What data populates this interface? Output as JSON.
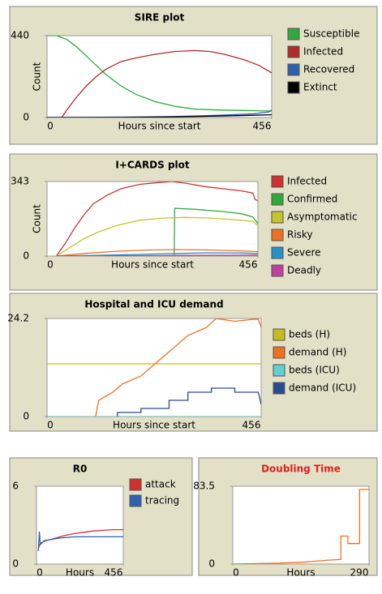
{
  "chart_data": [
    {
      "type": "line",
      "title": "SIRE plot",
      "xlabel": "Hours since start",
      "ylabel": "Count",
      "xlim": [
        0,
        456
      ],
      "ylim": [
        0,
        440
      ],
      "xticks": [
        0,
        456
      ],
      "yticks": [
        0,
        440
      ],
      "series": [
        {
          "name": "Susceptible",
          "color": "#2eaa3a",
          "x": [
            0,
            20,
            40,
            60,
            80,
            100,
            120,
            150,
            180,
            220,
            260,
            300,
            350,
            400,
            456
          ],
          "values": [
            440,
            440,
            420,
            380,
            330,
            280,
            230,
            170,
            125,
            85,
            60,
            45,
            40,
            38,
            35
          ]
        },
        {
          "name": "Infected",
          "color": "#b02a2a",
          "x": [
            30,
            40,
            60,
            80,
            100,
            120,
            150,
            180,
            220,
            260,
            300,
            330,
            360,
            400,
            430,
            456
          ],
          "values": [
            0,
            40,
            110,
            170,
            220,
            260,
            300,
            320,
            340,
            355,
            360,
            355,
            340,
            310,
            280,
            240
          ]
        },
        {
          "name": "Recovered",
          "color": "#3060b0",
          "x": [
            0,
            150,
            250,
            350,
            420,
            450,
            456
          ],
          "values": [
            0,
            2,
            5,
            12,
            20,
            30,
            40
          ]
        },
        {
          "name": "Extinct",
          "color": "#000000",
          "x": [
            0,
            150,
            250,
            350,
            420,
            456
          ],
          "values": [
            0,
            0,
            3,
            8,
            12,
            15
          ]
        }
      ]
    },
    {
      "type": "line",
      "title": "I+CARDS plot",
      "xlabel": "Hours since start",
      "ylabel": "Count",
      "xlim": [
        0,
        456
      ],
      "ylim": [
        0,
        343
      ],
      "xticks": [
        0,
        456
      ],
      "yticks": [
        0,
        343
      ],
      "series": [
        {
          "name": "Infected",
          "color": "#d03030",
          "x": [
            20,
            40,
            60,
            80,
            100,
            130,
            160,
            200,
            240,
            270,
            300,
            340,
            380,
            420,
            445,
            450,
            456
          ],
          "values": [
            0,
            60,
            130,
            190,
            240,
            280,
            310,
            330,
            338,
            343,
            335,
            320,
            310,
            300,
            290,
            260,
            255
          ]
        },
        {
          "name": "Confirmed",
          "color": "#2eaa3a",
          "x": [
            275,
            276,
            320,
            380,
            420,
            445,
            456
          ],
          "values": [
            0,
            220,
            215,
            205,
            195,
            180,
            150
          ]
        },
        {
          "name": "Asymptomatic",
          "color": "#c4c42a",
          "x": [
            20,
            50,
            80,
            110,
            150,
            200,
            250,
            300,
            350,
            400,
            445,
            456
          ],
          "values": [
            0,
            40,
            80,
            110,
            140,
            165,
            175,
            178,
            175,
            168,
            160,
            140
          ]
        },
        {
          "name": "Risky",
          "color": "#f07020",
          "x": [
            20,
            80,
            150,
            220,
            280,
            350,
            420,
            456
          ],
          "values": [
            0,
            12,
            22,
            28,
            30,
            28,
            24,
            20
          ]
        },
        {
          "name": "Severe",
          "color": "#2890c8",
          "x": [
            20,
            100,
            200,
            280,
            350,
            420,
            456
          ],
          "values": [
            0,
            3,
            8,
            12,
            15,
            14,
            12
          ]
        },
        {
          "name": "Deadly",
          "color": "#c040a0",
          "x": [
            20,
            150,
            300,
            400,
            456
          ],
          "values": [
            0,
            1,
            3,
            4,
            5
          ]
        }
      ]
    },
    {
      "type": "line",
      "title": "Hospital and ICU demand",
      "xlabel": "Hours since start",
      "xlim": [
        0,
        456
      ],
      "ylim": [
        0,
        24.2
      ],
      "xticks": [
        0,
        456
      ],
      "yticks": [
        0,
        24.2
      ],
      "series": [
        {
          "name": "beds (H)",
          "color": "#c4bc20",
          "x": [
            0,
            456
          ],
          "values": [
            13,
            13
          ]
        },
        {
          "name": "demand (H)",
          "color": "#f07020",
          "x": [
            100,
            110,
            110,
            140,
            140,
            160,
            160,
            200,
            200,
            240,
            240,
            270,
            270,
            300,
            300,
            340,
            340,
            360,
            360,
            400,
            400,
            440,
            450,
            456
          ],
          "values": [
            -2,
            4,
            4,
            6,
            6,
            8,
            8,
            10,
            10,
            14,
            14,
            17,
            17,
            20,
            20,
            22,
            22,
            24.2,
            24.2,
            23.5,
            23.5,
            24,
            24,
            22
          ]
        },
        {
          "name": "beds (ICU)",
          "color": "#60d0d0",
          "x": [
            0,
            456
          ],
          "values": [
            0,
            0
          ]
        },
        {
          "name": "demand (ICU)",
          "color": "#2a4a90",
          "x": [
            100,
            150,
            150,
            200,
            200,
            260,
            260,
            300,
            300,
            350,
            350,
            400,
            400,
            450,
            456
          ],
          "values": [
            -1,
            -1,
            1,
            1,
            2,
            2,
            4,
            4,
            6,
            6,
            7,
            7,
            6,
            6,
            3
          ]
        }
      ]
    },
    {
      "type": "line",
      "title": "R0",
      "xlabel": "Hours",
      "xlim": [
        0,
        456
      ],
      "ylim": [
        0,
        6
      ],
      "xticks": [
        0,
        456
      ],
      "yticks": [
        0,
        6
      ],
      "series": [
        {
          "name": "attack",
          "color": "#d03030",
          "x": [
            10,
            20,
            50,
            100,
            150,
            200,
            250,
            300,
            350,
            400,
            456
          ],
          "values": [
            1.2,
            1.6,
            1.8,
            2.0,
            2.2,
            2.35,
            2.45,
            2.55,
            2.6,
            2.65,
            2.65
          ]
        },
        {
          "name": "tracing",
          "color": "#3060b0",
          "x": [
            10,
            15,
            20,
            40,
            80,
            120,
            200,
            300,
            400,
            456
          ],
          "values": [
            1.0,
            2.5,
            1.5,
            1.8,
            1.9,
            2.0,
            2.1,
            2.1,
            2.1,
            2.1
          ]
        }
      ]
    },
    {
      "type": "line",
      "title": "Doubling Time",
      "title_color": "#e02020",
      "xlabel": "Hours",
      "xlim": [
        0,
        290
      ],
      "ylim": [
        0,
        83.5
      ],
      "xticks": [
        0,
        290
      ],
      "yticks": [
        0,
        83.5
      ],
      "series": [
        {
          "color": "#f07020",
          "x": [
            0,
            100,
            150,
            200,
            230,
            230,
            245,
            245,
            255,
            255,
            270,
            270,
            278,
            278,
            290
          ],
          "values": [
            0,
            1,
            2,
            4,
            5,
            30,
            30,
            22,
            22,
            22,
            22,
            80,
            80,
            80,
            80
          ]
        }
      ]
    }
  ]
}
